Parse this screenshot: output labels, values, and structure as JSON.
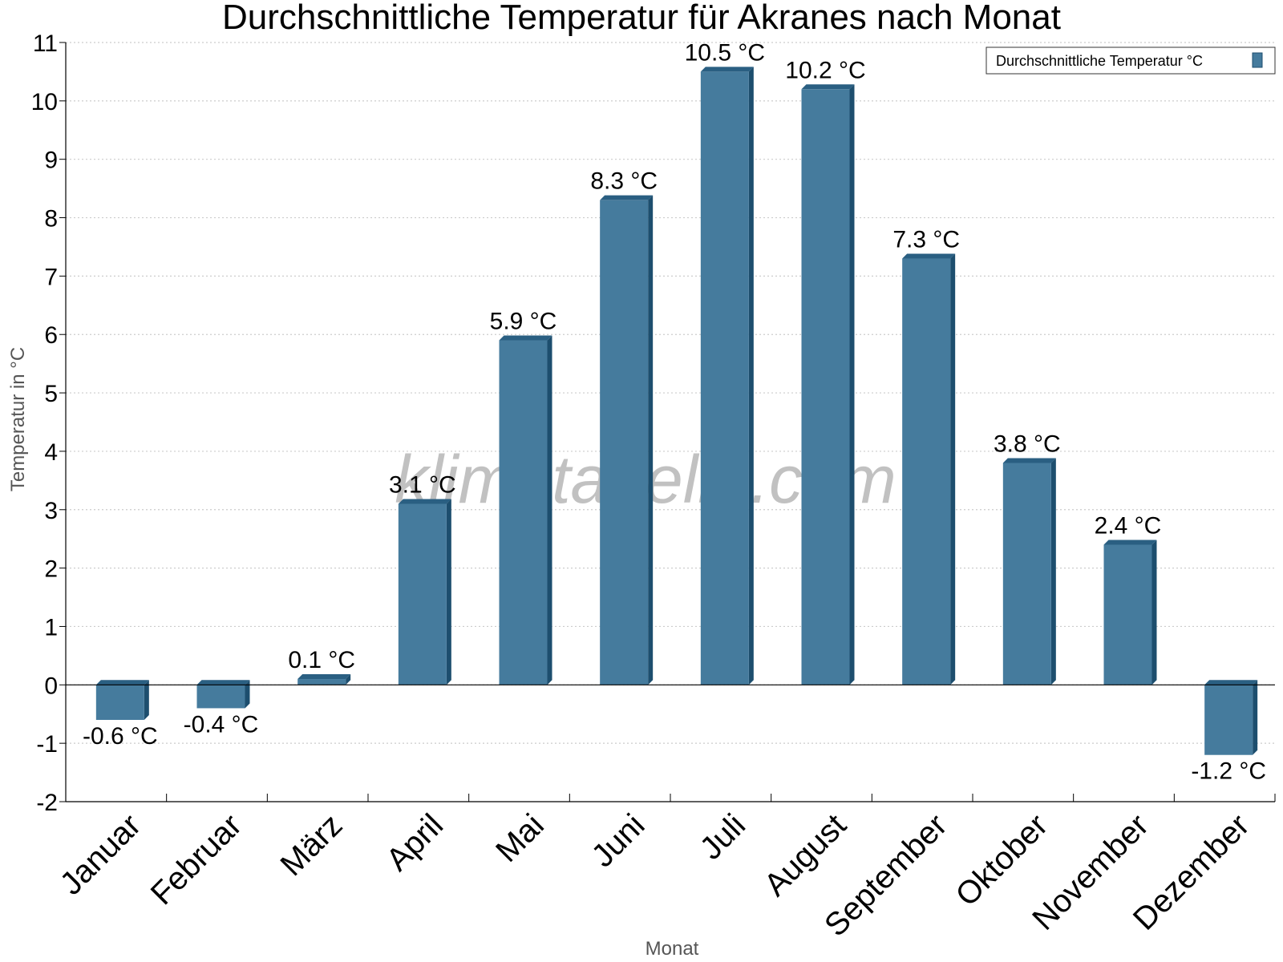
{
  "chart_data": {
    "type": "bar",
    "title": "Durchschnittliche Temperatur für Akranes nach Monat",
    "xlabel": "Monat",
    "ylabel": "Temperatur in °C",
    "categories": [
      "Januar",
      "Februar",
      "März",
      "April",
      "Mai",
      "Juni",
      "Juli",
      "August",
      "September",
      "Oktober",
      "November",
      "Dezember"
    ],
    "series": [
      {
        "name": "Durchschnittliche Temperatur °C",
        "values": [
          -0.6,
          -0.4,
          0.1,
          3.1,
          5.9,
          8.3,
          10.5,
          10.2,
          7.3,
          3.8,
          2.4,
          -1.2
        ],
        "labels": [
          "-0.6 °C",
          "-0.4 °C",
          "0.1 °C",
          "3.1 °C",
          "5.9 °C",
          "8.3 °C",
          "10.5 °C",
          "10.2 °C",
          "7.3 °C",
          "3.8 °C",
          "2.4 °C",
          "-1.2 °C"
        ]
      }
    ],
    "ylim": [
      -2,
      11
    ],
    "yticks": [
      -2,
      -1,
      0,
      1,
      2,
      3,
      4,
      5,
      6,
      7,
      8,
      9,
      10,
      11
    ],
    "grid": true,
    "legend_position": "top-right",
    "watermark": "klimatabelle.com",
    "colors": {
      "bar_front": "#457b9d",
      "bar_side": "#1d4e6e",
      "bar_top": "#2a5f82",
      "grid": "#cccccc",
      "axis": "#000000"
    }
  }
}
